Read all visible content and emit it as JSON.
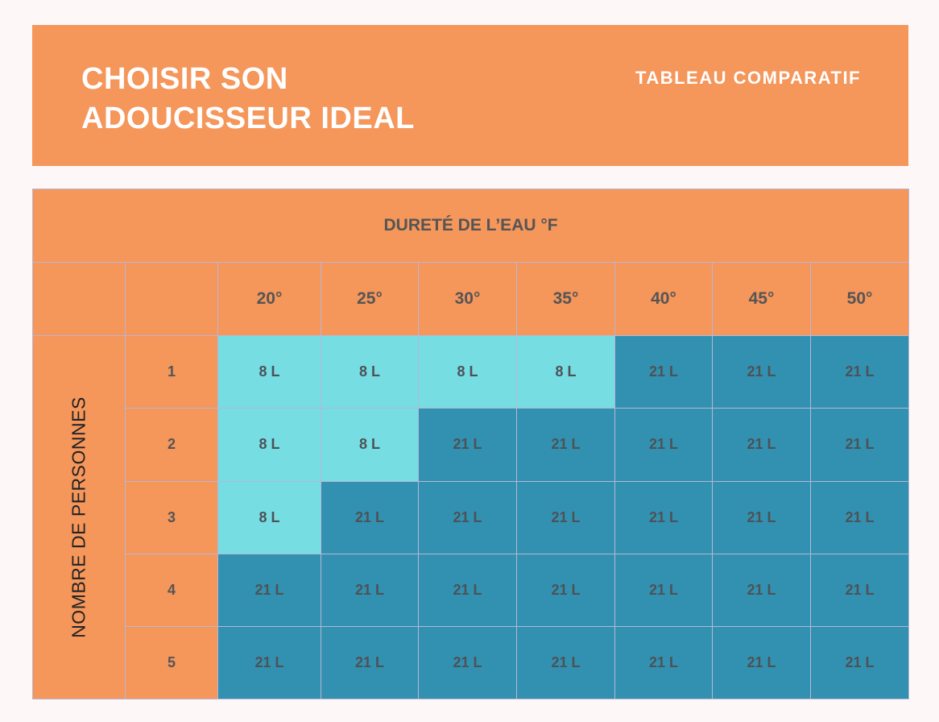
{
  "header": {
    "title_line1": "CHOISIR SON",
    "title_line2": "ADOUCISSEUR IDEAL",
    "subtitle": "TABLEAU COMPARATIF"
  },
  "table": {
    "title": "DURETÉ DE L’EAU °F",
    "side_label": "NOMBRE DE PERSONNES",
    "columns": [
      "20°",
      "25°",
      "30°",
      "35°",
      "40°",
      "45°",
      "50°"
    ],
    "rows": [
      {
        "persons": "1",
        "values": [
          "8 L",
          "8 L",
          "8 L",
          "8 L",
          "21 L",
          "21 L",
          "21 L"
        ]
      },
      {
        "persons": "2",
        "values": [
          "8 L",
          "8 L",
          "21 L",
          "21 L",
          "21 L",
          "21 L",
          "21 L"
        ]
      },
      {
        "persons": "3",
        "values": [
          "8 L",
          "21 L",
          "21 L",
          "21 L",
          "21 L",
          "21 L",
          "21 L"
        ]
      },
      {
        "persons": "4",
        "values": [
          "21 L",
          "21 L",
          "21 L",
          "21 L",
          "21 L",
          "21 L",
          "21 L"
        ]
      },
      {
        "persons": "5",
        "values": [
          "21 L",
          "21 L",
          "21 L",
          "21 L",
          "21 L",
          "21 L",
          "21 L"
        ]
      }
    ]
  },
  "colors": {
    "orange": "#f5965b",
    "light_teal": "#76dde3",
    "dark_teal": "#3291b0"
  }
}
